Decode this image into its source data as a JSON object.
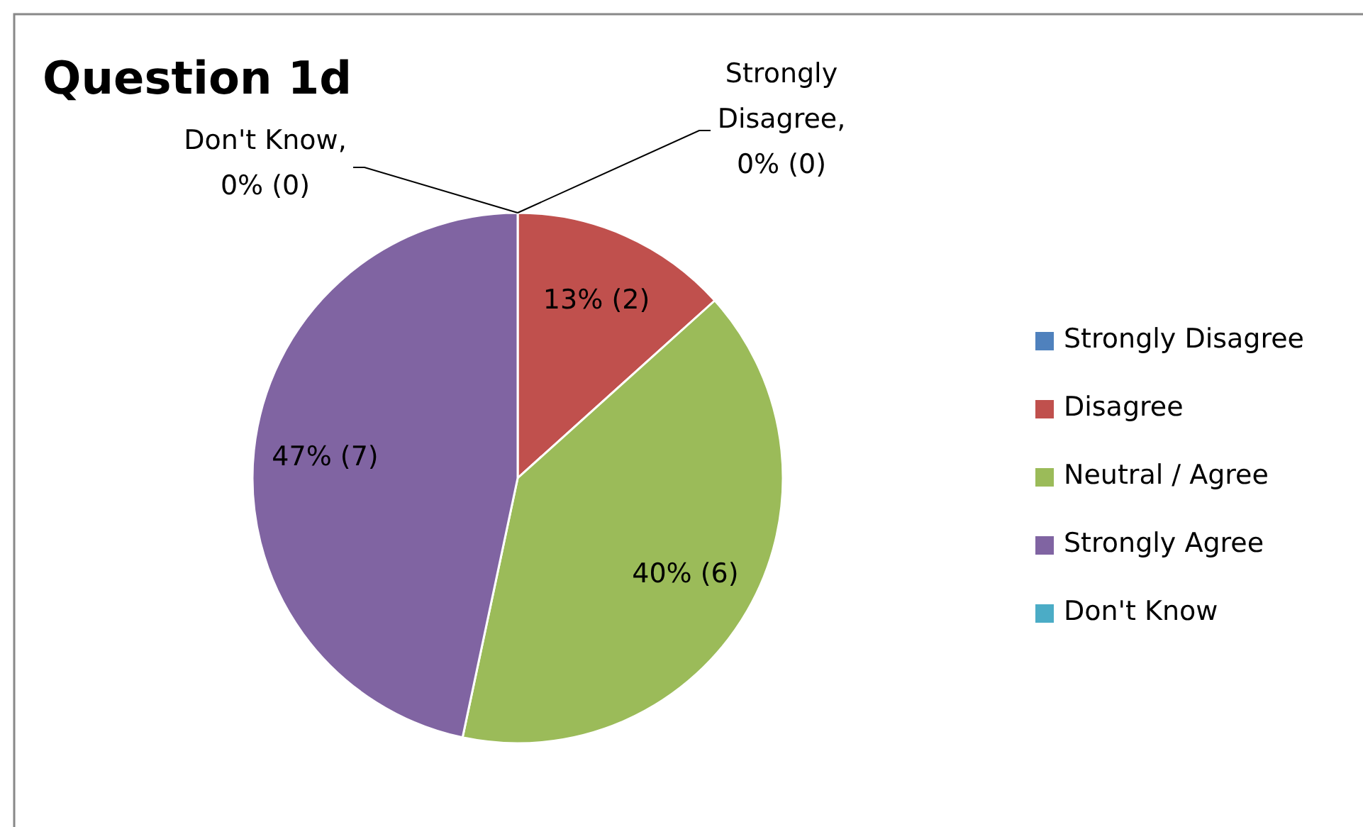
{
  "chart_data": {
    "type": "pie",
    "title": "Question 1d",
    "categories": [
      "Strongly Disagree",
      "Disagree",
      "Neutral / Agree",
      "Strongly Agree",
      "Don't Know"
    ],
    "values": [
      0,
      2,
      6,
      7,
      0
    ],
    "colors": [
      "#4f81bd",
      "#c0504d",
      "#9bbb59",
      "#8064a2",
      "#4bacc6"
    ],
    "value_labels": [
      "Strongly Disagree, 0% (0)",
      "13% (2)",
      "40% (6)",
      "47% (7)",
      "Don't Know, 0% (0)"
    ],
    "legend": "right"
  }
}
